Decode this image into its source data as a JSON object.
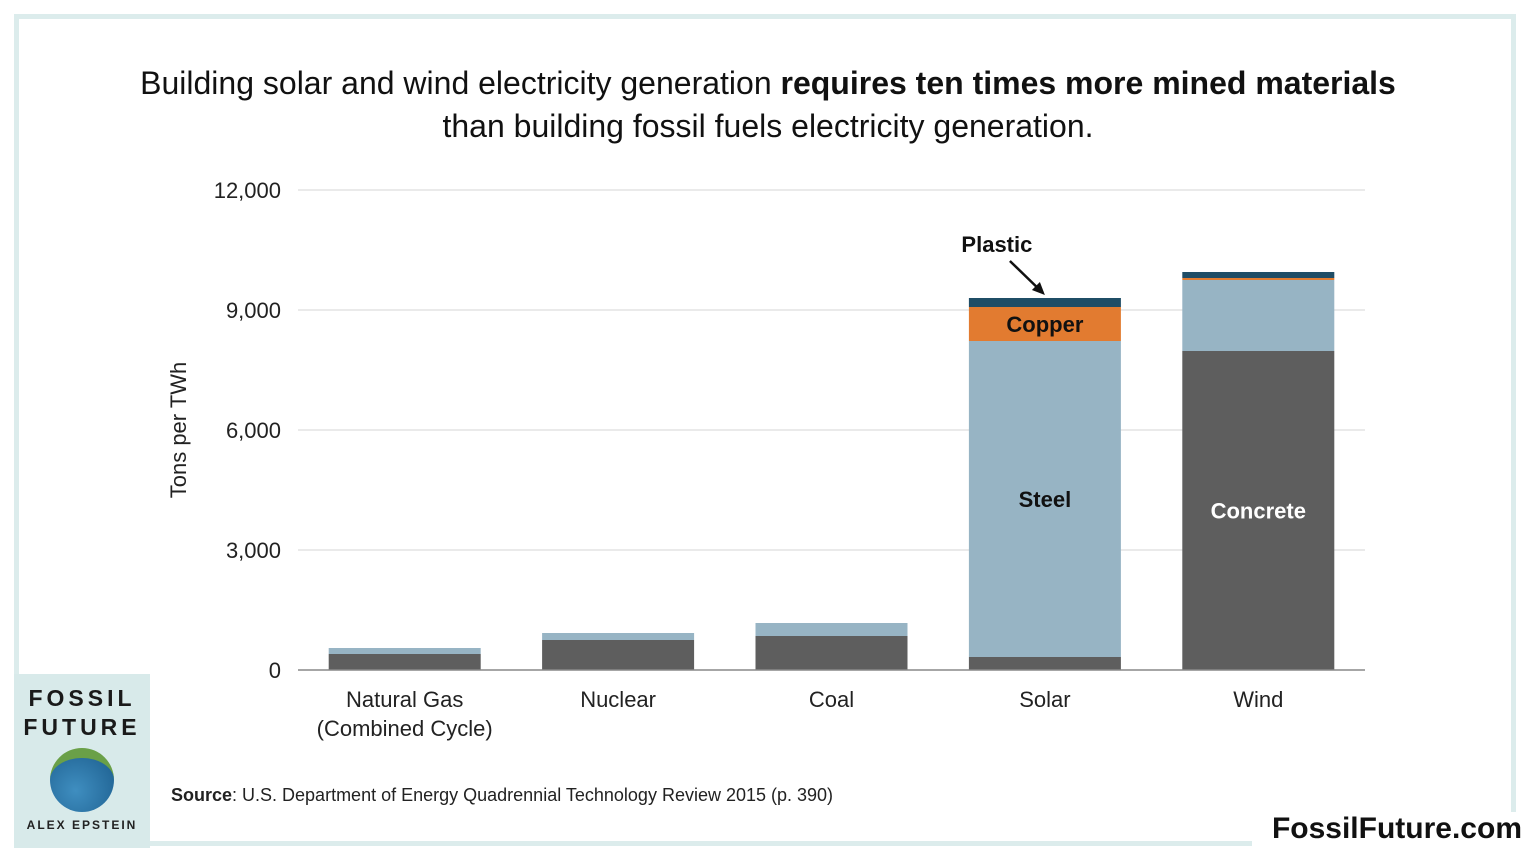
{
  "title_regular_1": "Building solar and wind electricity generation ",
  "title_bold": "requires ten times more mined materials",
  "title_regular_2": "than building fossil fuels electricity generation.",
  "source_label": "Source",
  "source_text": ": U.S. Department of Energy Quadrennial Technology Review 2015 (p. 390)",
  "brand": "FossilFuture.com",
  "book": {
    "line1": "FOSSIL",
    "line2": "FUTURE",
    "author": "ALEX EPSTEIN"
  },
  "chart_data": {
    "type": "bar",
    "stacked": true,
    "ylabel": "Tons per TWh",
    "ylim": [
      0,
      12000
    ],
    "yticks": [
      "0",
      "3,000",
      "6,000",
      "9,000",
      "12,000"
    ],
    "ytick_values": [
      0,
      3000,
      6000,
      9000,
      12000
    ],
    "grid": true,
    "categories": [
      "Natural Gas\n(Combined Cycle)",
      "Nuclear",
      "Coal",
      "Solar",
      "Wind"
    ],
    "series": [
      {
        "name": "Concrete",
        "color": "#5e5e5e",
        "values": [
          400,
          750,
          850,
          325,
          7975
        ]
      },
      {
        "name": "Steel",
        "color": "#97b4c4",
        "values": [
          150,
          175,
          325,
          7900,
          1775
        ]
      },
      {
        "name": "Copper",
        "color": "#e27b30",
        "values": [
          0,
          0,
          0,
          850,
          50
        ]
      },
      {
        "name": "Plastic",
        "color": "#1f4d66",
        "values": [
          0,
          0,
          0,
          225,
          150
        ]
      }
    ],
    "annotations": [
      {
        "text": "Plastic",
        "category": "Solar",
        "arrow": true
      },
      {
        "text": "Copper",
        "category": "Solar"
      },
      {
        "text": "Steel",
        "category": "Solar"
      },
      {
        "text": "Concrete",
        "category": "Wind"
      }
    ]
  }
}
